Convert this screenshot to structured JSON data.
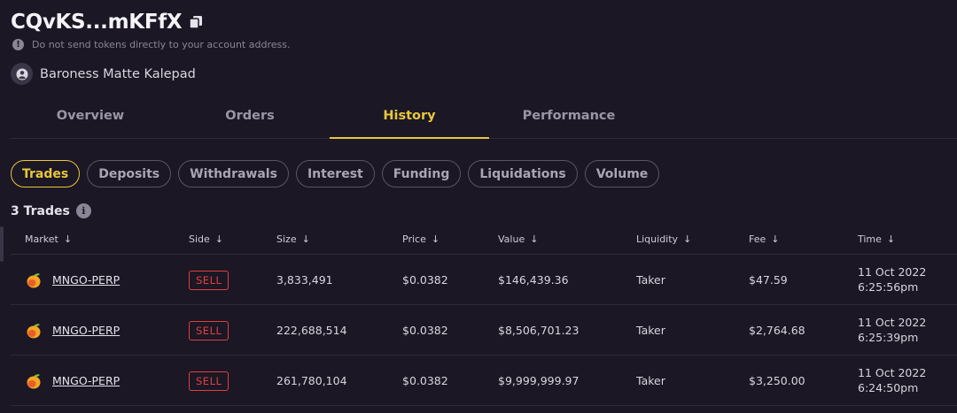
{
  "account": {
    "title": "CQvKS...mKFfX",
    "warning": "Do not send tokens directly to your account address.",
    "profile_name": "Baroness Matte Kalepad"
  },
  "tabs": [
    {
      "label": "Overview",
      "active": false
    },
    {
      "label": "Orders",
      "active": false
    },
    {
      "label": "History",
      "active": true
    },
    {
      "label": "Performance",
      "active": false
    }
  ],
  "subtabs": [
    {
      "label": "Trades",
      "active": true
    },
    {
      "label": "Deposits",
      "active": false
    },
    {
      "label": "Withdrawals",
      "active": false
    },
    {
      "label": "Interest",
      "active": false
    },
    {
      "label": "Funding",
      "active": false
    },
    {
      "label": "Liquidations",
      "active": false
    },
    {
      "label": "Volume",
      "active": false
    }
  ],
  "trades_count": "3 Trades",
  "columns": [
    "Market",
    "Side",
    "Size",
    "Price",
    "Value",
    "Liquidity",
    "Fee",
    "Time"
  ],
  "rows": [
    {
      "market": "MNGO-PERP",
      "side": "SELL",
      "size": "3,833,491",
      "price": "$0.0382",
      "value": "$146,439.36",
      "liquidity": "Taker",
      "fee": "$47.59",
      "date": "11 Oct 2022",
      "time": "6:25:56pm"
    },
    {
      "market": "MNGO-PERP",
      "side": "SELL",
      "size": "222,688,514",
      "price": "$0.0382",
      "value": "$8,506,701.23",
      "liquidity": "Taker",
      "fee": "$2,764.68",
      "date": "11 Oct 2022",
      "time": "6:25:39pm"
    },
    {
      "market": "MNGO-PERP",
      "side": "SELL",
      "size": "261,780,104",
      "price": "$0.0382",
      "value": "$9,999,999.97",
      "liquidity": "Taker",
      "fee": "$3,250.00",
      "date": "11 Oct 2022",
      "time": "6:24:50pm"
    }
  ],
  "colors": {
    "accent": "#e8c73a",
    "sell": "#e0403f",
    "background": "#1b1725"
  },
  "icons": {
    "copy": "copy-icon",
    "warning": "warning-icon",
    "user": "user-icon",
    "info": "info-icon",
    "sort": "arrow-down-icon",
    "mango": "mango-icon"
  }
}
